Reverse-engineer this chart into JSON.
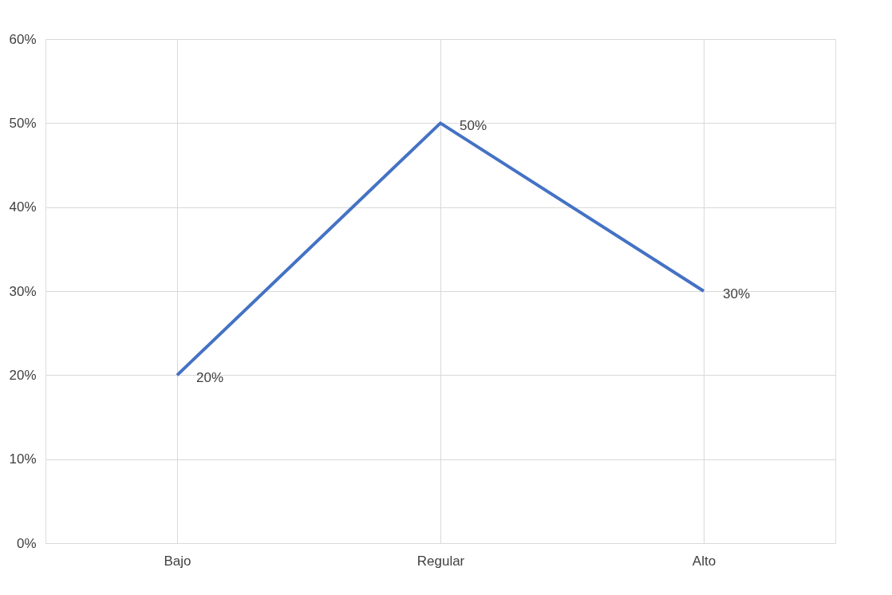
{
  "chart_data": {
    "type": "line",
    "categories": [
      "Bajo",
      "Regular",
      "Alto"
    ],
    "series": [
      {
        "color": "#4472c4",
        "values": [
          20,
          50,
          30
        ]
      }
    ],
    "value_labels": [
      "20%",
      "50%",
      "30%"
    ],
    "ylim": [
      0,
      60
    ],
    "yticks": [
      {
        "value": 0,
        "label": "0%"
      },
      {
        "value": 10,
        "label": "10%"
      },
      {
        "value": 20,
        "label": "20%"
      },
      {
        "value": 30,
        "label": "30%"
      },
      {
        "value": 40,
        "label": "40%"
      },
      {
        "value": 50,
        "label": "50%"
      },
      {
        "value": 60,
        "label": "60%"
      }
    ],
    "grid": true,
    "marker": "none",
    "line_style": "solid"
  }
}
